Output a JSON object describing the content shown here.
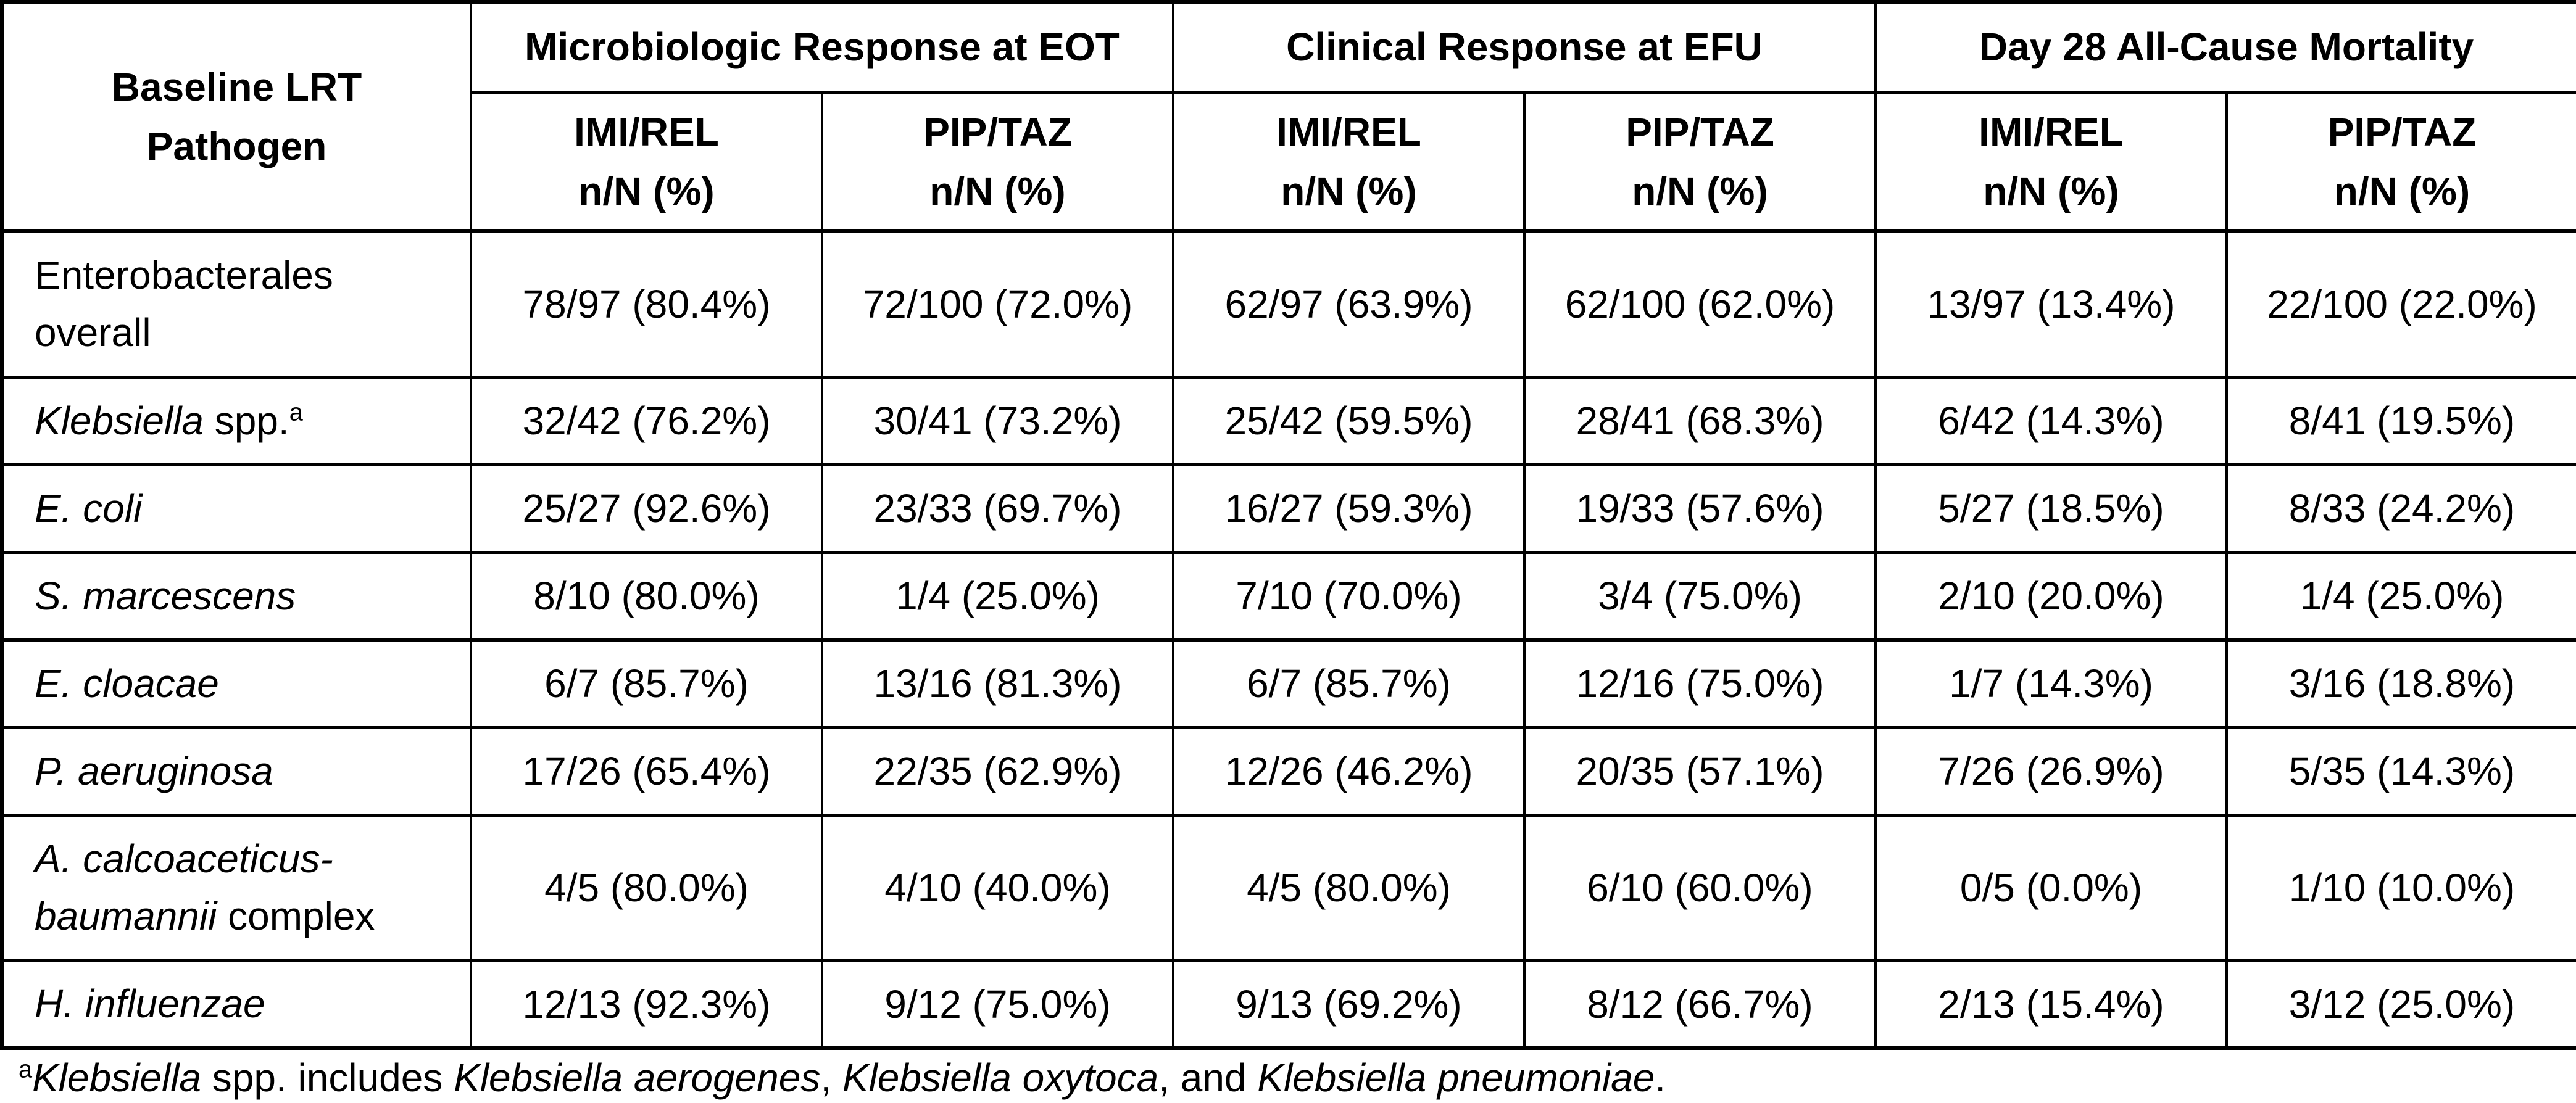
{
  "page": {
    "background": "#ffffff",
    "text_color": "#000000",
    "border_color": "#000000"
  },
  "table": {
    "corner_header_lines": [
      "Baseline LRT",
      "Pathogen"
    ],
    "section_titles": [
      "Microbiologic Response at EOT",
      "Clinical Response at EFU",
      "Day 28 All-Cause Mortality"
    ],
    "subheaders": [
      {
        "arm": "IMI/REL",
        "metric": "n/N (%)"
      },
      {
        "arm": "PIP/TAZ",
        "metric": "n/N (%)"
      },
      {
        "arm": "IMI/REL",
        "metric": "n/N (%)"
      },
      {
        "arm": "PIP/TAZ",
        "metric": "n/N (%)"
      },
      {
        "arm": "IMI/REL",
        "metric": "n/N (%)"
      },
      {
        "arm": "PIP/TAZ",
        "metric": "n/N (%)"
      }
    ],
    "rows": [
      {
        "tall": true,
        "pathogen": [
          {
            "t": "Enterobacterales overall",
            "i": false
          }
        ],
        "values": [
          "78/97 (80.4%)",
          "72/100 (72.0%)",
          "62/97 (63.9%)",
          "62/100 (62.0%)",
          "13/97 (13.4%)",
          "22/100 (22.0%)"
        ]
      },
      {
        "tall": false,
        "pathogen": [
          {
            "t": "Klebsiella",
            "i": true
          },
          {
            "t": " spp.",
            "i": false
          },
          {
            "t": "a",
            "i": false,
            "sup": true
          }
        ],
        "values": [
          "32/42 (76.2%)",
          "30/41 (73.2%)",
          "25/42 (59.5%)",
          "28/41 (68.3%)",
          "6/42 (14.3%)",
          "8/41 (19.5%)"
        ]
      },
      {
        "tall": false,
        "pathogen": [
          {
            "t": "E. coli",
            "i": true
          }
        ],
        "values": [
          "25/27 (92.6%)",
          "23/33 (69.7%)",
          "16/27 (59.3%)",
          "19/33 (57.6%)",
          "5/27 (18.5%)",
          "8/33 (24.2%)"
        ]
      },
      {
        "tall": false,
        "pathogen": [
          {
            "t": "S. marcescens",
            "i": true
          }
        ],
        "values": [
          "8/10 (80.0%)",
          "1/4 (25.0%)",
          "7/10 (70.0%)",
          "3/4 (75.0%)",
          "2/10 (20.0%)",
          "1/4 (25.0%)"
        ]
      },
      {
        "tall": false,
        "pathogen": [
          {
            "t": "E. cloacae",
            "i": true
          }
        ],
        "values": [
          "6/7 (85.7%)",
          "13/16 (81.3%)",
          "6/7 (85.7%)",
          "12/16 (75.0%)",
          "1/7 (14.3%)",
          "3/16 (18.8%)"
        ]
      },
      {
        "tall": false,
        "pathogen": [
          {
            "t": "P. aeruginosa",
            "i": true
          }
        ],
        "values": [
          "17/26 (65.4%)",
          "22/35 (62.9%)",
          "12/26 (46.2%)",
          "20/35 (57.1%)",
          "7/26 (26.9%)",
          "5/35 (14.3%)"
        ]
      },
      {
        "tall": true,
        "pathogen": [
          {
            "t": "A. calcoaceticus-baumannii",
            "i": true
          },
          {
            "t": " complex",
            "i": false
          }
        ],
        "values": [
          "4/5 (80.0%)",
          "4/10 (40.0%)",
          "4/5 (80.0%)",
          "6/10 (60.0%)",
          "0/5 (0.0%)",
          "1/10 (10.0%)"
        ]
      },
      {
        "tall": false,
        "pathogen": [
          {
            "t": "H. influenzae",
            "i": true
          }
        ],
        "values": [
          "12/13 (92.3%)",
          "9/12 (75.0%)",
          "9/13 (69.2%)",
          "8/12 (66.7%)",
          "2/13 (15.4%)",
          "3/12 (25.0%)"
        ]
      }
    ]
  },
  "footnote": {
    "segments": [
      {
        "t": "a",
        "i": false,
        "sup": true
      },
      {
        "t": "Klebsiella",
        "i": true
      },
      {
        "t": " spp. includes ",
        "i": false
      },
      {
        "t": "Klebsiella aerogenes",
        "i": true
      },
      {
        "t": ", ",
        "i": false
      },
      {
        "t": "Klebsiella oxytoca",
        "i": true
      },
      {
        "t": ", and ",
        "i": false
      },
      {
        "t": "Klebsiella pneumoniae",
        "i": true
      },
      {
        "t": ".",
        "i": false
      }
    ]
  }
}
